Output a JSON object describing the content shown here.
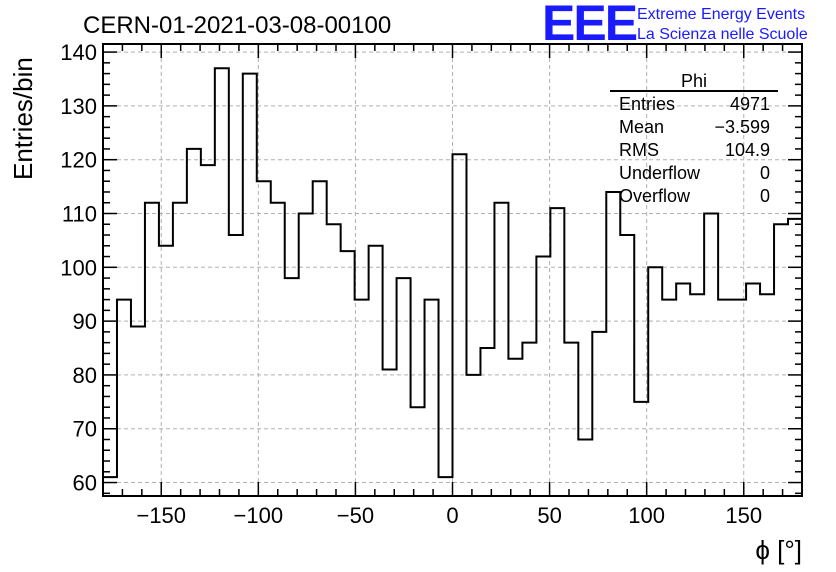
{
  "chart_data": {
    "type": "bar",
    "title": "CERN-01-2021-03-08-00100",
    "xlabel": "ϕ [°]",
    "ylabel": "Entries/bin",
    "xlim": [
      -180,
      180
    ],
    "ylim": [
      57.5,
      141.5
    ],
    "grid": true,
    "bin_width": 7.2,
    "bin_edges_start": -180,
    "values": [
      61,
      94,
      89,
      112,
      104,
      112,
      122,
      119,
      137,
      106,
      136,
      116,
      112,
      98,
      110,
      116,
      108,
      103,
      94,
      104,
      81,
      98,
      74,
      94,
      61,
      121,
      80,
      85,
      112,
      83,
      86,
      102,
      111,
      86,
      68,
      88,
      114,
      106,
      75,
      100,
      94,
      97,
      95,
      110,
      94,
      94,
      97,
      95,
      108,
      109
    ],
    "x_ticks": [
      -150,
      -100,
      -50,
      0,
      50,
      100,
      150
    ],
    "y_ticks": [
      60,
      70,
      80,
      90,
      100,
      110,
      120,
      130,
      140
    ],
    "stats_box": {
      "name": "Phi",
      "rows": [
        {
          "label": "Entries",
          "value": "4971"
        },
        {
          "label": "Mean",
          "value": "−3.599"
        },
        {
          "label": "RMS",
          "value": "104.9"
        },
        {
          "label": "Underflow",
          "value": "0"
        },
        {
          "label": "Overflow",
          "value": "0"
        }
      ]
    }
  },
  "logo": {
    "mark": "EEE",
    "line1": "Extreme Energy Events",
    "line2": "La Scienza nelle Scuole",
    "color": "#1a1aff"
  }
}
